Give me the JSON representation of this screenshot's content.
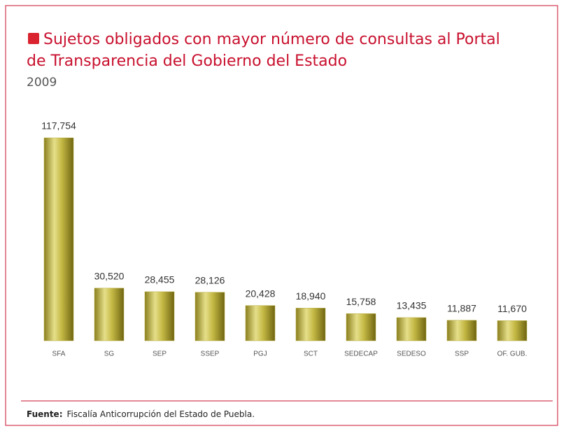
{
  "chart_data": {
    "type": "bar",
    "title_lines": [
      "Sujetos obligados con mayor número de consultas al Portal",
      "de Transparencia del Gobierno del Estado"
    ],
    "subtitle": "2009",
    "categories": [
      "SFA",
      "SG",
      "SEP",
      "SSEP",
      "PGJ",
      "SCT",
      "SEDECAP",
      "SEDESO",
      "SSP",
      "OF. GUB."
    ],
    "values": [
      117754,
      30520,
      28455,
      28126,
      20428,
      18940,
      15758,
      13435,
      11887,
      11670
    ],
    "value_labels": [
      "117,754",
      "30,520",
      "28,455",
      "28,126",
      "20,428",
      "18,940",
      "15,758",
      "13,435",
      "11,887",
      "11,670"
    ],
    "color": "#b5a83a",
    "source_label": "Fuente:",
    "source_text": "Fiscalía Anticorrupción del Estado de Puebla."
  }
}
